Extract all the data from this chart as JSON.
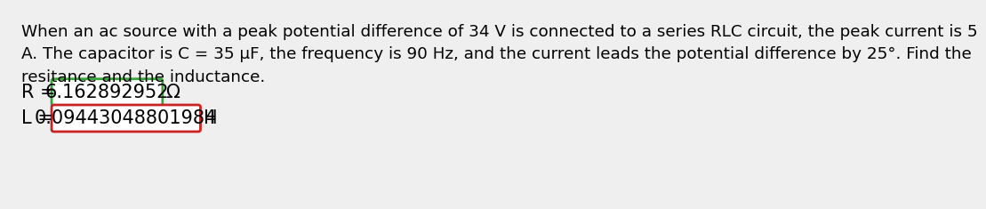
{
  "background_color": "#efefef",
  "text_color": "#000000",
  "problem_text_line1": "When an ac source with a peak potential difference of 34 V is connected to a series RLC circuit, the peak current is 5",
  "problem_text_line2": "A. The capacitor is C = 35 μF, the frequency is 90 Hz, and the current leads the potential difference by 25°. Find the",
  "problem_text_line3": "resitance and the inductance.",
  "R_label": "R = ",
  "R_value": "6.162892952",
  "R_unit": "Ω",
  "L_label": "L = ",
  "L_value": "0.09443048801984",
  "L_unit": "H",
  "R_box_color": "#33aa33",
  "L_box_color": "#cc2222",
  "font_size_text": 13.2,
  "font_size_answer": 15.0
}
